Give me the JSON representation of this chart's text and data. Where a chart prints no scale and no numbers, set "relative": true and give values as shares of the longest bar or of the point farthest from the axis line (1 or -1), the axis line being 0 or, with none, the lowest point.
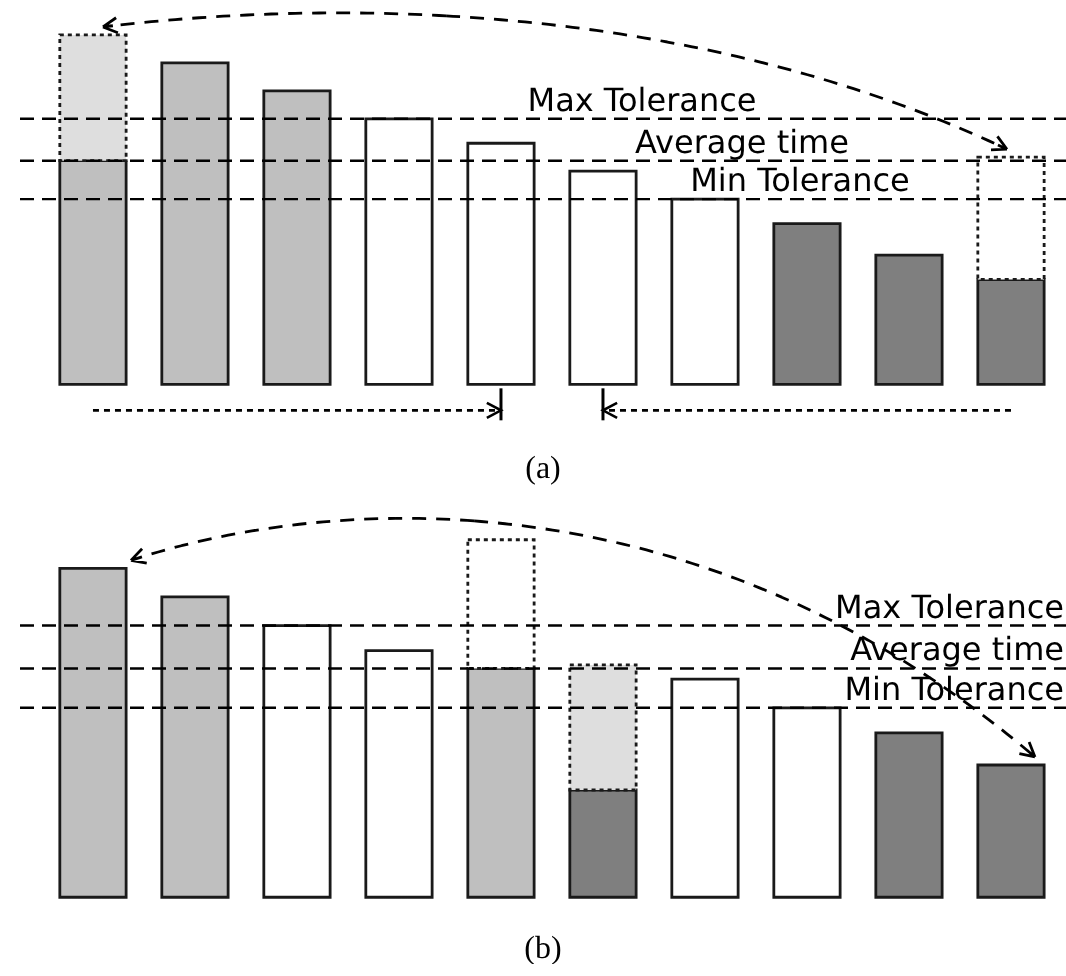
{
  "chart_data": [
    {
      "type": "bar",
      "title": "(a)",
      "relative": true,
      "stacked": true,
      "categories": [
        null,
        null,
        null,
        null,
        null,
        null,
        null,
        null,
        null,
        null
      ],
      "series": [
        {
          "colors": [
            "#bfbfbf",
            "#bfbfbf",
            "#bfbfbf",
            "#ffffff",
            "#ffffff",
            "#ffffff",
            "#ffffff",
            "#7f7f7f",
            "#7f7f7f",
            "#7f7f7f"
          ],
          "values": [
            0.64,
            0.92,
            0.84,
            0.76,
            0.69,
            0.61,
            0.53,
            0.46,
            0.37,
            0.3
          ],
          "line_style": "solid"
        },
        {
          "colors": [
            "#dedede",
            null,
            null,
            null,
            null,
            null,
            null,
            null,
            null,
            "#ffffff"
          ],
          "values": [
            0.36,
            null,
            null,
            null,
            null,
            null,
            null,
            null,
            null,
            0.35
          ],
          "line_style": "dotted"
        }
      ],
      "ref_lines": [
        {
          "axis": "y",
          "value": 0.76,
          "label": "Max Tolerance",
          "color": "#000000",
          "line_style": "dashed"
        },
        {
          "axis": "y",
          "value": 0.64,
          "label": "Average time",
          "color": "#000000",
          "line_style": "dashed"
        },
        {
          "axis": "y",
          "value": 0.53,
          "label": "Min Tolerance",
          "color": "#000000",
          "line_style": "dashed"
        }
      ]
    },
    {
      "type": "bar",
      "title": "(b)",
      "relative": true,
      "stacked": true,
      "categories": [
        null,
        null,
        null,
        null,
        null,
        null,
        null,
        null,
        null,
        null
      ],
      "series": [
        {
          "colors": [
            "#bfbfbf",
            "#bfbfbf",
            "#ffffff",
            "#ffffff",
            "#bfbfbf",
            "#7f7f7f",
            "#ffffff",
            "#ffffff",
            "#7f7f7f",
            "#7f7f7f"
          ],
          "values": [
            0.92,
            0.84,
            0.76,
            0.69,
            0.64,
            0.3,
            0.61,
            0.53,
            0.46,
            0.37
          ],
          "line_style": "solid"
        },
        {
          "colors": [
            null,
            null,
            null,
            null,
            "#ffffff",
            "#dedede",
            null,
            null,
            null,
            null
          ],
          "values": [
            null,
            null,
            null,
            null,
            0.36,
            0.35,
            null,
            null,
            null,
            null
          ],
          "line_style": "dotted"
        }
      ],
      "ref_lines": [
        {
          "axis": "y",
          "value": 0.76,
          "label": "Max Tolerance",
          "color": "#000000",
          "line_style": "dashed"
        },
        {
          "axis": "y",
          "value": 0.64,
          "label": "Average time",
          "color": "#000000",
          "line_style": "dashed"
        },
        {
          "axis": "y",
          "value": 0.53,
          "label": "Min Tolerance",
          "color": "#000000",
          "line_style": "dashed"
        }
      ]
    }
  ]
}
